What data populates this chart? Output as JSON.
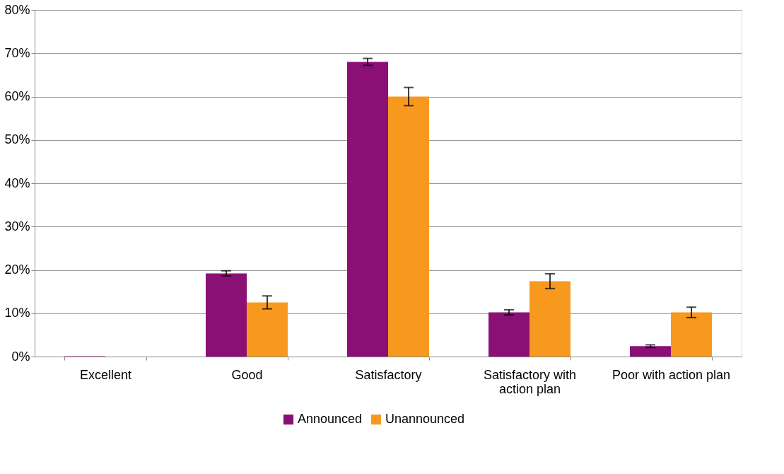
{
  "chart_data": {
    "type": "bar",
    "categories": [
      "Excellent",
      "Good",
      "Satisfactory",
      "Satisfactory with\naction plan",
      "Poor with action plan"
    ],
    "series": [
      {
        "name": "Announced",
        "color": "#8b1076",
        "values": [
          0.1,
          19.2,
          68,
          10.2,
          2.4
        ],
        "errors": [
          null,
          0.6,
          0.8,
          0.6,
          0.3
        ]
      },
      {
        "name": "Unannounced",
        "color": "#f7991f",
        "values": [
          0,
          12.5,
          60,
          17.4,
          10.2
        ],
        "errors": [
          null,
          1.5,
          2.1,
          1.7,
          1.2
        ]
      }
    ],
    "ylim": [
      0,
      80
    ],
    "yticks": [
      {
        "value": 0,
        "label": "0%"
      },
      {
        "value": 10,
        "label": "10%"
      },
      {
        "value": 20,
        "label": "20%"
      },
      {
        "value": 30,
        "label": "30%"
      },
      {
        "value": 40,
        "label": "40%"
      },
      {
        "value": 50,
        "label": "50%"
      },
      {
        "value": 60,
        "label": "60%"
      },
      {
        "value": 70,
        "label": "70%"
      },
      {
        "value": 80,
        "label": "80%"
      }
    ],
    "grid": "y",
    "legend": "bottom"
  }
}
